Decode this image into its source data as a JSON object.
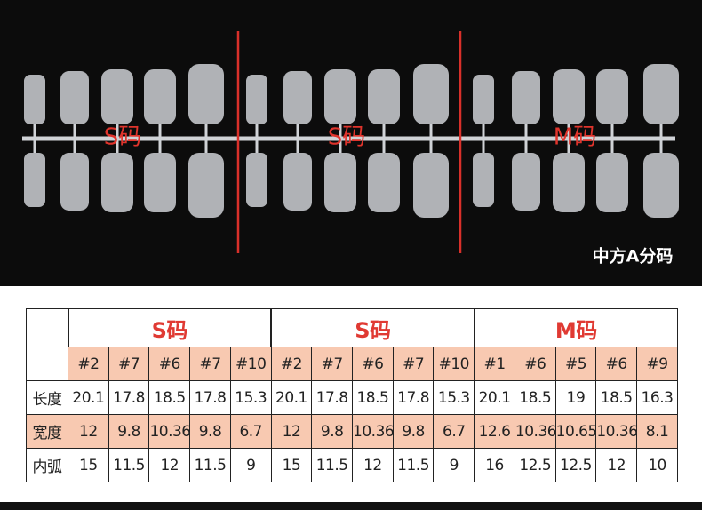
{
  "photo": {
    "labels": [
      "S码",
      "S码",
      "M码"
    ],
    "caption": "中方A分码"
  },
  "table": {
    "groups": [
      {
        "name": "S码",
        "sizes": [
          "#2",
          "#7",
          "#6",
          "#7",
          "#10"
        ]
      },
      {
        "name": "S码",
        "sizes": [
          "#2",
          "#7",
          "#6",
          "#7",
          "#10"
        ]
      },
      {
        "name": "M码",
        "sizes": [
          "#1",
          "#6",
          "#5",
          "#6",
          "#9"
        ]
      }
    ],
    "rows": [
      {
        "label": "长度",
        "values": [
          20.1,
          17.8,
          18.5,
          17.8,
          15.3,
          20.1,
          17.8,
          18.5,
          17.8,
          15.3,
          20.1,
          18.5,
          19,
          18.5,
          16.3
        ]
      },
      {
        "label": "宽度",
        "values": [
          12,
          9.8,
          10.36,
          9.8,
          6.7,
          12,
          9.8,
          10.36,
          9.8,
          6.7,
          12.6,
          10.36,
          10.65,
          10.36,
          8.1
        ]
      },
      {
        "label": "内弧",
        "values": [
          15,
          11.5,
          12,
          11.5,
          9,
          15,
          11.5,
          12,
          11.5,
          9,
          16,
          12.5,
          12.5,
          12,
          10
        ]
      }
    ]
  }
}
